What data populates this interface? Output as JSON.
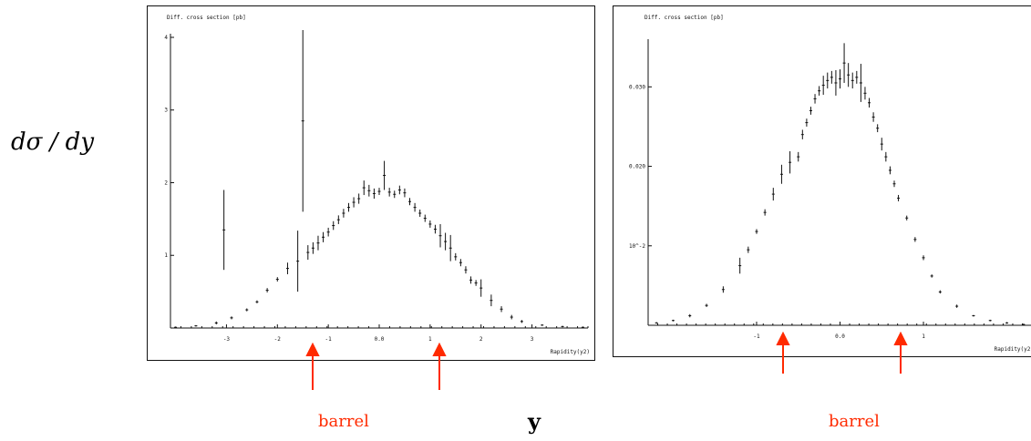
{
  "labels": {
    "y_axis": "dσ / dy",
    "x_axis": "y",
    "barrel_left": "barrel",
    "barrel_right": "barrel"
  },
  "colors": {
    "arrow": "#ff2a00",
    "plot": "#111111"
  },
  "chart_data": [
    {
      "type": "scatter",
      "title": "",
      "plot_title": "Diff. cross section [pb]",
      "xlabel": "Rapidity(y2)",
      "x_ticks": [
        "-3",
        "-2",
        "-1",
        "0.0",
        "1",
        "2",
        "3"
      ],
      "y_ticks": [
        "1",
        "2",
        "3",
        "4"
      ],
      "xlim": [
        -4.1,
        4.1
      ],
      "ylim": [
        0,
        4.05
      ],
      "barrel_arrows_x": [
        -1.4,
        1.4
      ],
      "x": [
        -4.0,
        -3.6,
        -3.2,
        -2.9,
        -2.6,
        -2.4,
        -2.2,
        -2.0,
        -1.8,
        -1.6,
        -1.4,
        -1.3,
        -1.2,
        -1.1,
        -1.0,
        -0.9,
        -0.8,
        -0.7,
        -0.6,
        -0.5,
        -0.4,
        -0.3,
        -0.2,
        -0.1,
        0.0,
        0.1,
        0.2,
        0.3,
        0.4,
        0.5,
        0.6,
        0.7,
        0.8,
        0.9,
        1.0,
        1.1,
        1.2,
        1.3,
        1.4,
        1.5,
        1.6,
        1.7,
        1.8,
        1.9,
        2.0,
        2.2,
        2.4,
        2.6,
        2.8,
        3.2,
        3.6,
        4.0
      ],
      "y": [
        0.01,
        0.03,
        0.07,
        0.14,
        0.25,
        0.36,
        0.52,
        0.67,
        0.82,
        0.92,
        1.04,
        1.1,
        1.17,
        1.25,
        1.32,
        1.41,
        1.49,
        1.58,
        1.66,
        1.73,
        1.78,
        1.93,
        1.89,
        1.85,
        1.88,
        2.1,
        1.87,
        1.84,
        1.9,
        1.86,
        1.74,
        1.66,
        1.58,
        1.51,
        1.43,
        1.36,
        1.27,
        1.19,
        1.1,
        0.98,
        0.9,
        0.8,
        0.66,
        0.62,
        0.55,
        0.38,
        0.26,
        0.15,
        0.09,
        0.04,
        0.02,
        0.01
      ],
      "err": [
        0.01,
        0.01,
        0.02,
        0.02,
        0.02,
        0.02,
        0.03,
        0.03,
        0.08,
        0.42,
        0.1,
        0.08,
        0.1,
        0.07,
        0.06,
        0.06,
        0.06,
        0.06,
        0.06,
        0.07,
        0.07,
        0.1,
        0.08,
        0.07,
        0.05,
        0.2,
        0.06,
        0.05,
        0.06,
        0.06,
        0.05,
        0.06,
        0.05,
        0.05,
        0.05,
        0.06,
        0.16,
        0.12,
        0.18,
        0.05,
        0.05,
        0.05,
        0.05,
        0.04,
        0.12,
        0.08,
        0.04,
        0.03,
        0.02,
        0.01,
        0.01,
        0.01
      ],
      "outliers": [
        {
          "x": -1.5,
          "y": 2.85,
          "err": 1.25
        },
        {
          "x": -3.05,
          "y": 1.35,
          "err": 0.55
        }
      ]
    },
    {
      "type": "scatter",
      "title": "",
      "plot_title": "Diff. cross section [pb]",
      "xlabel": "Rapidity(y2)",
      "x_ticks": [
        "-1",
        "0.0",
        "1"
      ],
      "y_ticks": [
        "10^-2",
        "0.020",
        "0.030"
      ],
      "xlim": [
        -2.3,
        2.3
      ],
      "ylim": [
        0,
        0.036
      ],
      "barrel_arrows_x": [
        -0.52,
        0.52
      ],
      "x": [
        -2.2,
        -2.0,
        -1.8,
        -1.6,
        -1.4,
        -1.2,
        -1.1,
        -1.0,
        -0.9,
        -0.8,
        -0.7,
        -0.6,
        -0.5,
        -0.45,
        -0.4,
        -0.35,
        -0.3,
        -0.25,
        -0.2,
        -0.15,
        -0.1,
        -0.05,
        0.0,
        0.05,
        0.1,
        0.15,
        0.2,
        0.25,
        0.3,
        0.35,
        0.4,
        0.45,
        0.5,
        0.55,
        0.6,
        0.65,
        0.7,
        0.8,
        0.9,
        1.0,
        1.1,
        1.2,
        1.4,
        1.6,
        1.8,
        2.0,
        2.2
      ],
      "y": [
        0.0003,
        0.0006,
        0.0012,
        0.0025,
        0.0045,
        0.0075,
        0.0095,
        0.0118,
        0.0142,
        0.0165,
        0.019,
        0.0205,
        0.0212,
        0.024,
        0.0255,
        0.027,
        0.0285,
        0.0295,
        0.0302,
        0.0308,
        0.0312,
        0.0305,
        0.031,
        0.033,
        0.0315,
        0.0308,
        0.0312,
        0.0305,
        0.0292,
        0.028,
        0.0262,
        0.0248,
        0.0228,
        0.0212,
        0.0195,
        0.0178,
        0.016,
        0.0135,
        0.0108,
        0.0085,
        0.0062,
        0.0042,
        0.0024,
        0.0012,
        0.0006,
        0.0003,
        0.0001
      ],
      "err": [
        0.0001,
        0.0001,
        0.0002,
        0.0002,
        0.0004,
        0.001,
        0.0004,
        0.0003,
        0.0004,
        0.0008,
        0.0012,
        0.0014,
        0.0006,
        0.0006,
        0.0005,
        0.0005,
        0.0006,
        0.0006,
        0.0012,
        0.001,
        0.0008,
        0.0016,
        0.0012,
        0.0025,
        0.0015,
        0.001,
        0.0008,
        0.0024,
        0.0008,
        0.0006,
        0.0006,
        0.0005,
        0.0008,
        0.0006,
        0.0005,
        0.0004,
        0.0004,
        0.0003,
        0.0003,
        0.0003,
        0.0002,
        0.0002,
        0.0002,
        0.0001,
        0.0001,
        0.0001,
        0.0001
      ]
    }
  ]
}
